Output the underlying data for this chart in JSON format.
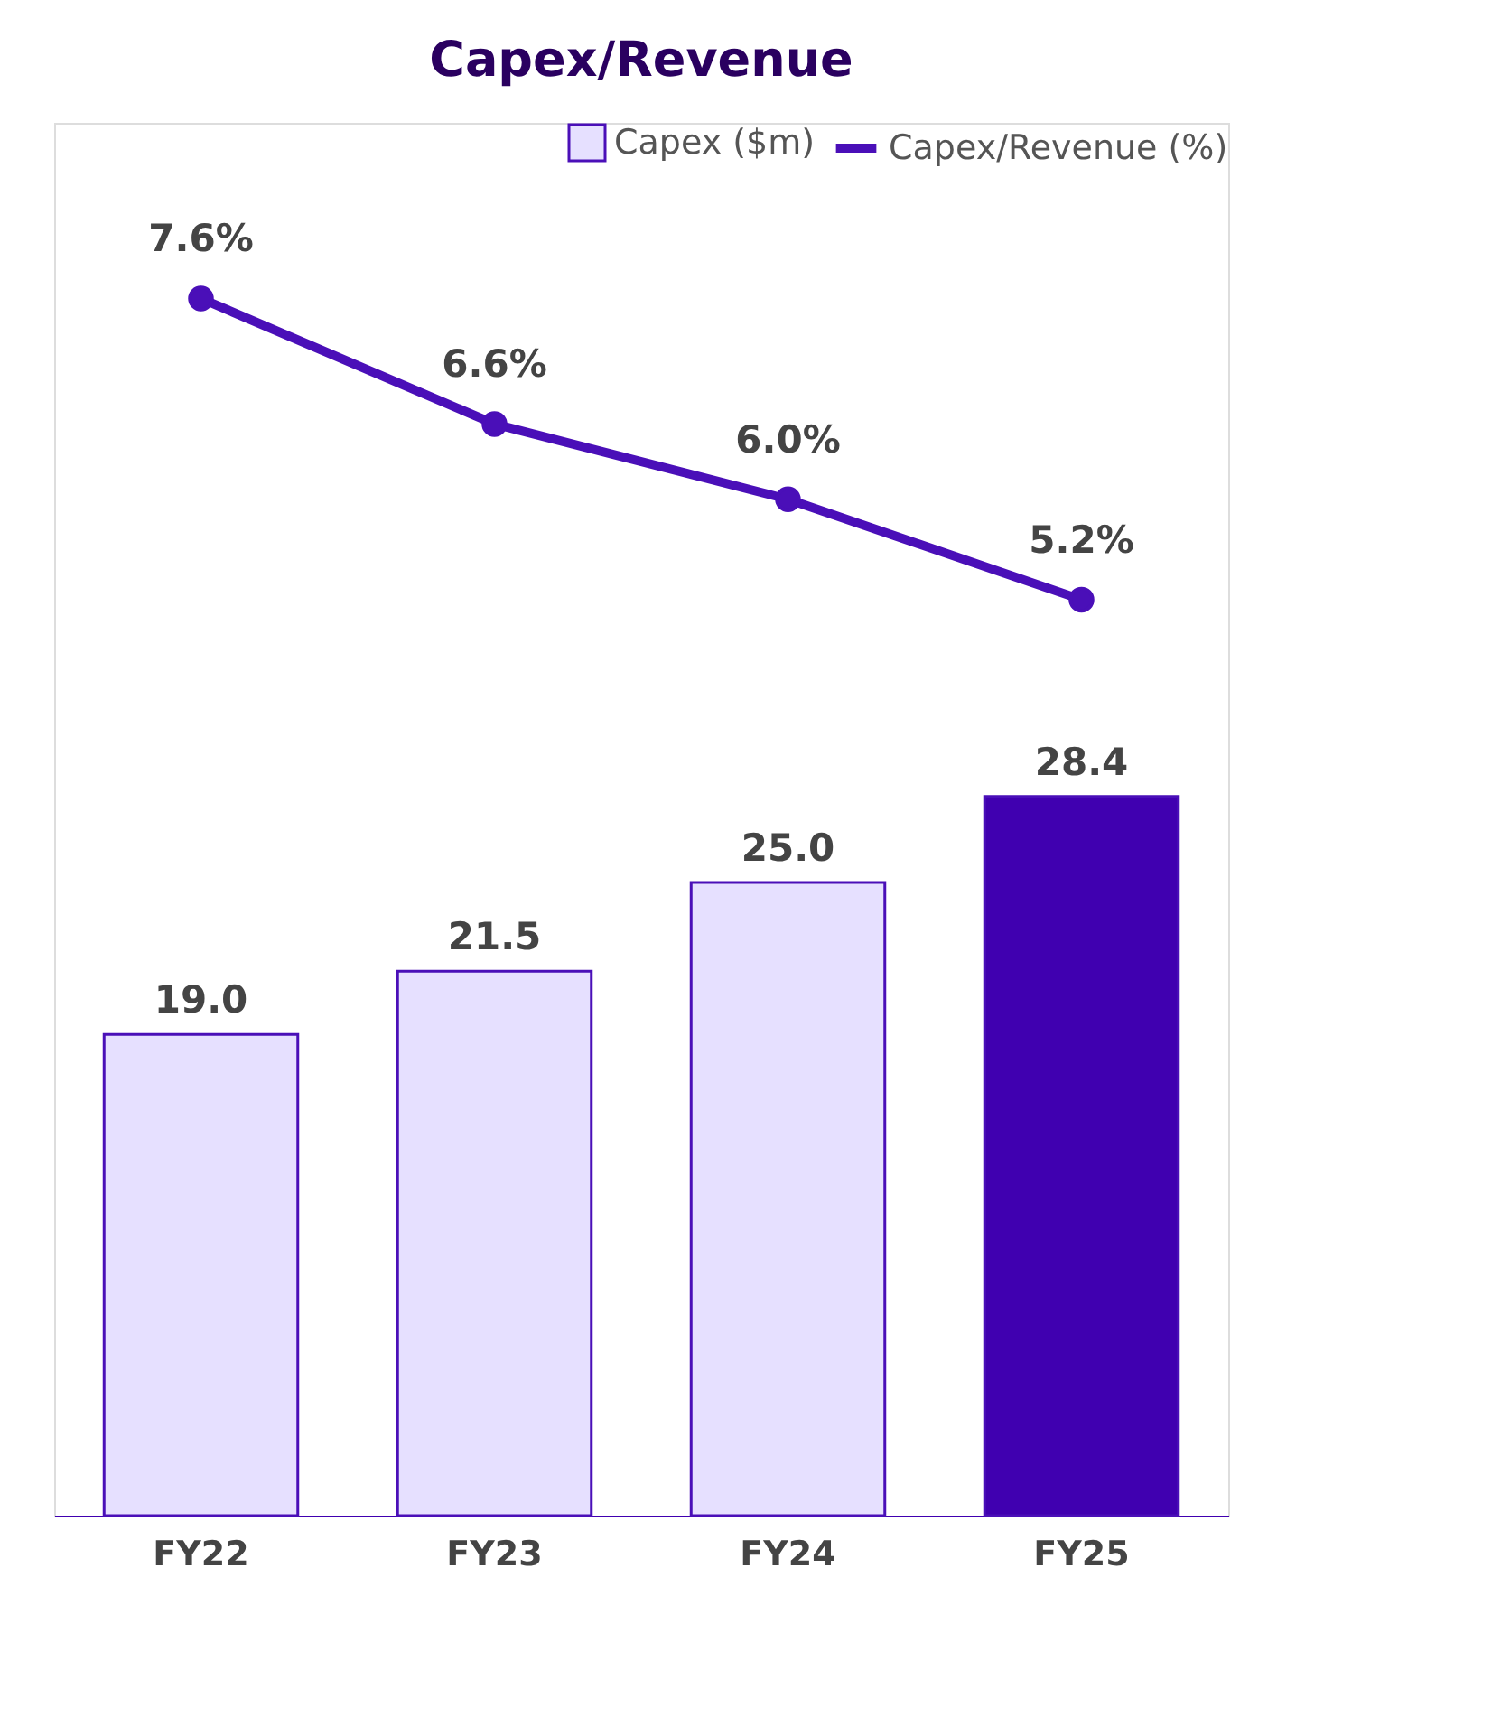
{
  "chart_data": {
    "type": "bar",
    "title": "Capex/Revenue",
    "categories": [
      "FY22",
      "FY23",
      "FY24",
      "FY25"
    ],
    "series": [
      {
        "name": "Capex ($m)",
        "colors": [
          "#e6e0ff",
          "#e6e0ff",
          "#e6e0ff",
          "#4000b0"
        ],
        "values": [
          19.0,
          21.5,
          25.0,
          28.4
        ],
        "value_labels": [
          "19.0",
          "21.5",
          "25.0",
          "28.4"
        ]
      },
      {
        "name": "Capex/Revenue (%)",
        "type": "line",
        "axis": "y2",
        "color": "#4a0fb8",
        "marker": "circle",
        "values": [
          7.6,
          6.6,
          6.0,
          5.2
        ],
        "value_labels": [
          "7.6%",
          "6.6%",
          "6.0%",
          "5.2%"
        ]
      }
    ],
    "ylim": [
      0,
      55
    ],
    "y2lim": [
      -2.1,
      9.0
    ],
    "tick_labels": "x",
    "legend": "top right",
    "grid": false
  }
}
